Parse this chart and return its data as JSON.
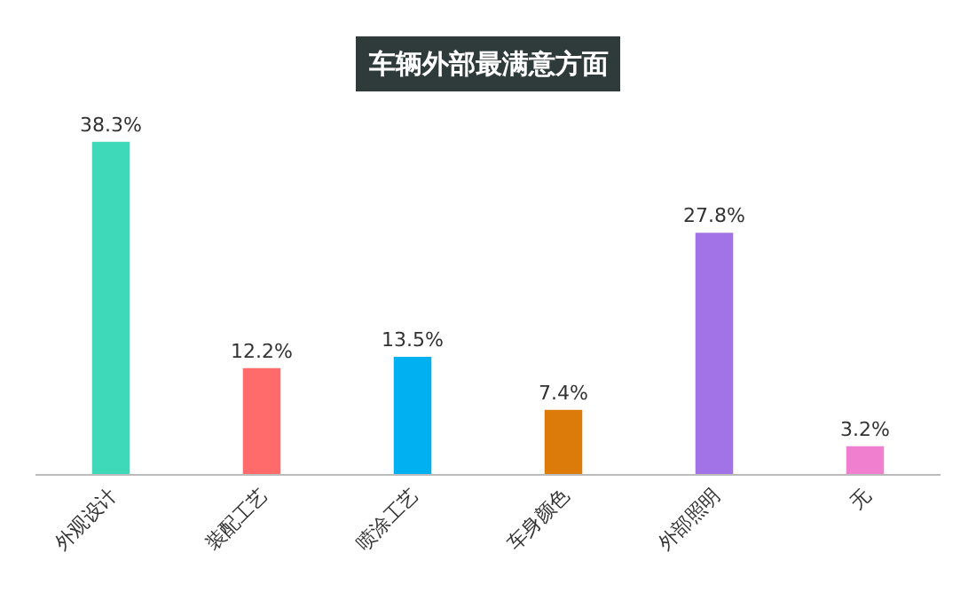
{
  "chart_data": {
    "type": "bar",
    "title": "车辆外部最满意方面",
    "categories": [
      "外观设计",
      "装配工艺",
      "喷涂工艺",
      "车身颜色",
      "外部照明",
      "无"
    ],
    "values": [
      38.3,
      12.2,
      13.5,
      7.4,
      27.8,
      3.2
    ],
    "colors": [
      "#3dd9b8",
      "#ff6b6b",
      "#00b0f0",
      "#dc7a0a",
      "#a173e6",
      "#f07fd0"
    ],
    "value_labels": [
      "38.3%",
      "12.2%",
      "13.5%",
      "7.4%",
      "27.8%",
      "3.2%"
    ],
    "legend": false
  }
}
